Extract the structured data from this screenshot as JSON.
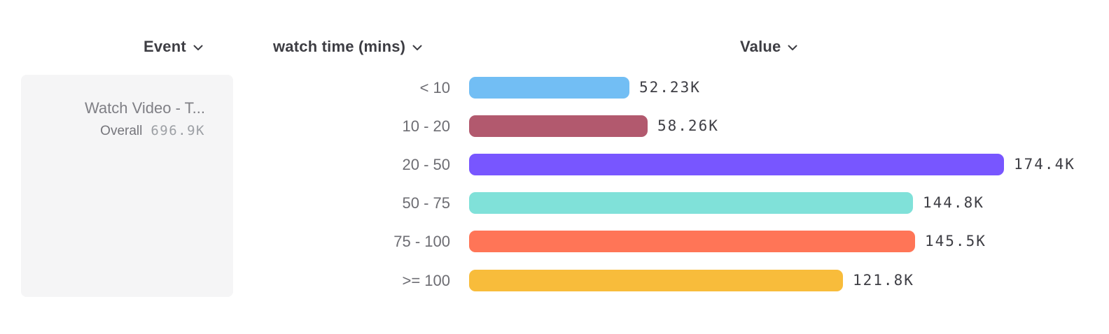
{
  "page": {
    "background": "#ffffff"
  },
  "headers": {
    "event": {
      "label": "Event"
    },
    "breakdown": {
      "label": "watch time (mins)"
    },
    "value": {
      "label": "Value"
    }
  },
  "event_card": {
    "title": "Watch Video - T...",
    "overall_label": "Overall",
    "overall_value": "696.9K"
  },
  "icons": {
    "chevron": "chevron-down-icon"
  },
  "colors": {
    "header_text": "#3d3d43",
    "bucket_text": "#6d6d73",
    "card_bg": "#f5f5f6",
    "card_title": "#7f7f85",
    "card_value": "#9da0a5"
  },
  "chart_data": {
    "type": "bar",
    "orientation": "horizontal",
    "title": "",
    "xlabel": "Value",
    "ylabel": "watch time (mins)",
    "categories": [
      "< 10",
      "10 - 20",
      "20 - 50",
      "50 - 75",
      "75 - 100",
      ">= 100"
    ],
    "values": [
      52230,
      58260,
      174400,
      144800,
      145500,
      121800
    ],
    "value_labels": [
      "52.23K",
      "58.26K",
      "174.4K",
      "144.8K",
      "145.5K",
      "121.8K"
    ],
    "colors": [
      "#72BEF4",
      "#B2596E",
      "#7856FF",
      "#80E1D9",
      "#FF7557",
      "#F8BC3B"
    ],
    "xlim": [
      0,
      178000
    ],
    "grid": false,
    "legend": false,
    "overall_total": "696.9K"
  }
}
